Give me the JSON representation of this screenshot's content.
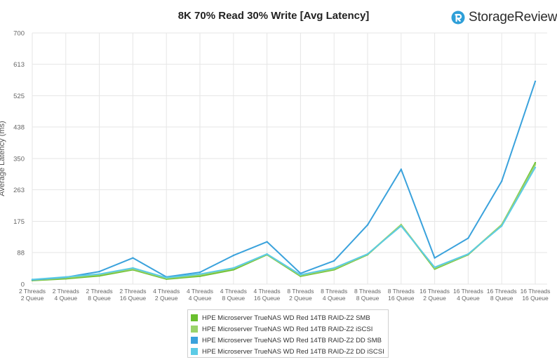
{
  "brand": {
    "name": "StorageReview",
    "logo_icon": "storagereview-logo-icon",
    "logo_color": "#2e9fd8"
  },
  "chart_data": {
    "type": "line",
    "title": "8K 70% Read 30% Write [Avg Latency]",
    "xlabel": "",
    "ylabel": "Average Latency (ms)",
    "ylim": [
      0,
      700
    ],
    "yticks": [
      0,
      88,
      175,
      263,
      350,
      438,
      525,
      613,
      700
    ],
    "grid": true,
    "legend_position": "bottom",
    "categories": [
      [
        "2 Threads",
        "2 Queue"
      ],
      [
        "2 Threads",
        "4 Queue"
      ],
      [
        "2 Threads",
        "8 Queue"
      ],
      [
        "2 Threads",
        "16 Queue"
      ],
      [
        "4 Threads",
        "2 Queue"
      ],
      [
        "4 Threads",
        "4 Queue"
      ],
      [
        "4 Threads",
        "8 Queue"
      ],
      [
        "4 Threads",
        "16 Queue"
      ],
      [
        "8 Threads",
        "2 Queue"
      ],
      [
        "8 Threads",
        "4 Queue"
      ],
      [
        "8 Threads",
        "8 Queue"
      ],
      [
        "8 Threads",
        "16 Queue"
      ],
      [
        "16 Threads",
        "2 Queue"
      ],
      [
        "16 Threads",
        "4 Queue"
      ],
      [
        "16 Threads",
        "8 Queue"
      ],
      [
        "16 Threads",
        "16 Queue"
      ]
    ],
    "series": [
      {
        "name": "HPE Microserver TrueNAS WD Red 14TB RAID-Z2 SMB",
        "color": "#6abf2e",
        "values": [
          10,
          15,
          23,
          40,
          14,
          22,
          40,
          82,
          22,
          40,
          82,
          165,
          42,
          82,
          165,
          338
        ]
      },
      {
        "name": "HPE Microserver TrueNAS WD Red 14TB RAID-Z2 iSCSI",
        "color": "#9ad36a",
        "values": [
          11,
          17,
          26,
          42,
          16,
          25,
          43,
          83,
          24,
          42,
          83,
          166,
          44,
          83,
          166,
          333
        ]
      },
      {
        "name": "HPE Microserver TrueNAS WD Red 14TB RAID-Z2 DD SMB",
        "color": "#3aa2dc",
        "values": [
          12,
          19,
          35,
          73,
          20,
          33,
          80,
          118,
          30,
          65,
          165,
          320,
          73,
          128,
          287,
          565
        ]
      },
      {
        "name": "HPE Microserver TrueNAS WD Red 14TB RAID-Z2 DD iSCSI",
        "color": "#5ccbe6",
        "values": [
          13,
          20,
          28,
          45,
          18,
          28,
          45,
          84,
          26,
          45,
          84,
          162,
          47,
          84,
          162,
          325
        ]
      }
    ]
  }
}
